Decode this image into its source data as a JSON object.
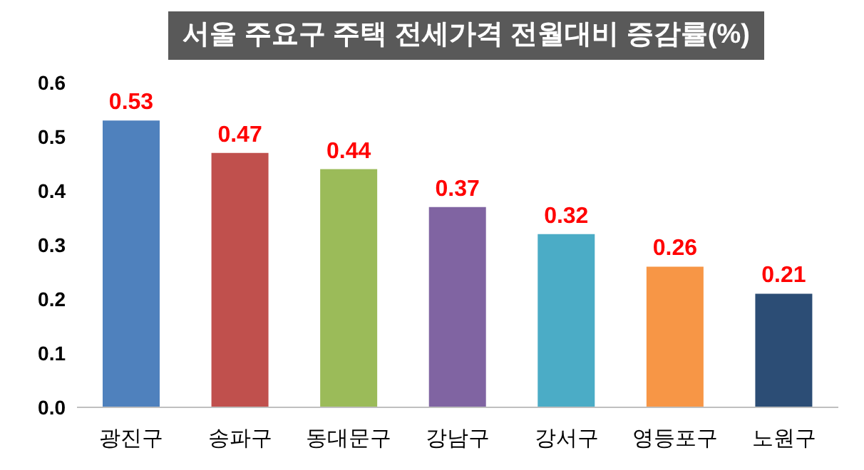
{
  "chart_data": {
    "type": "bar",
    "title": "서울 주요구 주택 전세가격 전월대비 증감률(%)",
    "categories": [
      "광진구",
      "송파구",
      "동대문구",
      "강남구",
      "강서구",
      "영등포구",
      "노원구"
    ],
    "values": [
      0.53,
      0.47,
      0.44,
      0.37,
      0.32,
      0.26,
      0.21
    ],
    "colors": [
      "#4f81bd",
      "#c0504d",
      "#9bbb59",
      "#8064a2",
      "#4bacc6",
      "#f79646",
      "#2c4d75"
    ],
    "ylim": [
      0,
      0.6
    ],
    "yticks": [
      {
        "value": 0,
        "label": "0.0"
      },
      {
        "value": 0.1,
        "label": "0.1"
      },
      {
        "value": 0.2,
        "label": "0.2"
      },
      {
        "value": 0.3,
        "label": "0.3"
      },
      {
        "value": 0.4,
        "label": "0.4"
      },
      {
        "value": 0.5,
        "label": "0.5"
      },
      {
        "value": 0.6,
        "label": "0.6"
      }
    ],
    "data_labels": true,
    "grid": false,
    "legend": false
  }
}
